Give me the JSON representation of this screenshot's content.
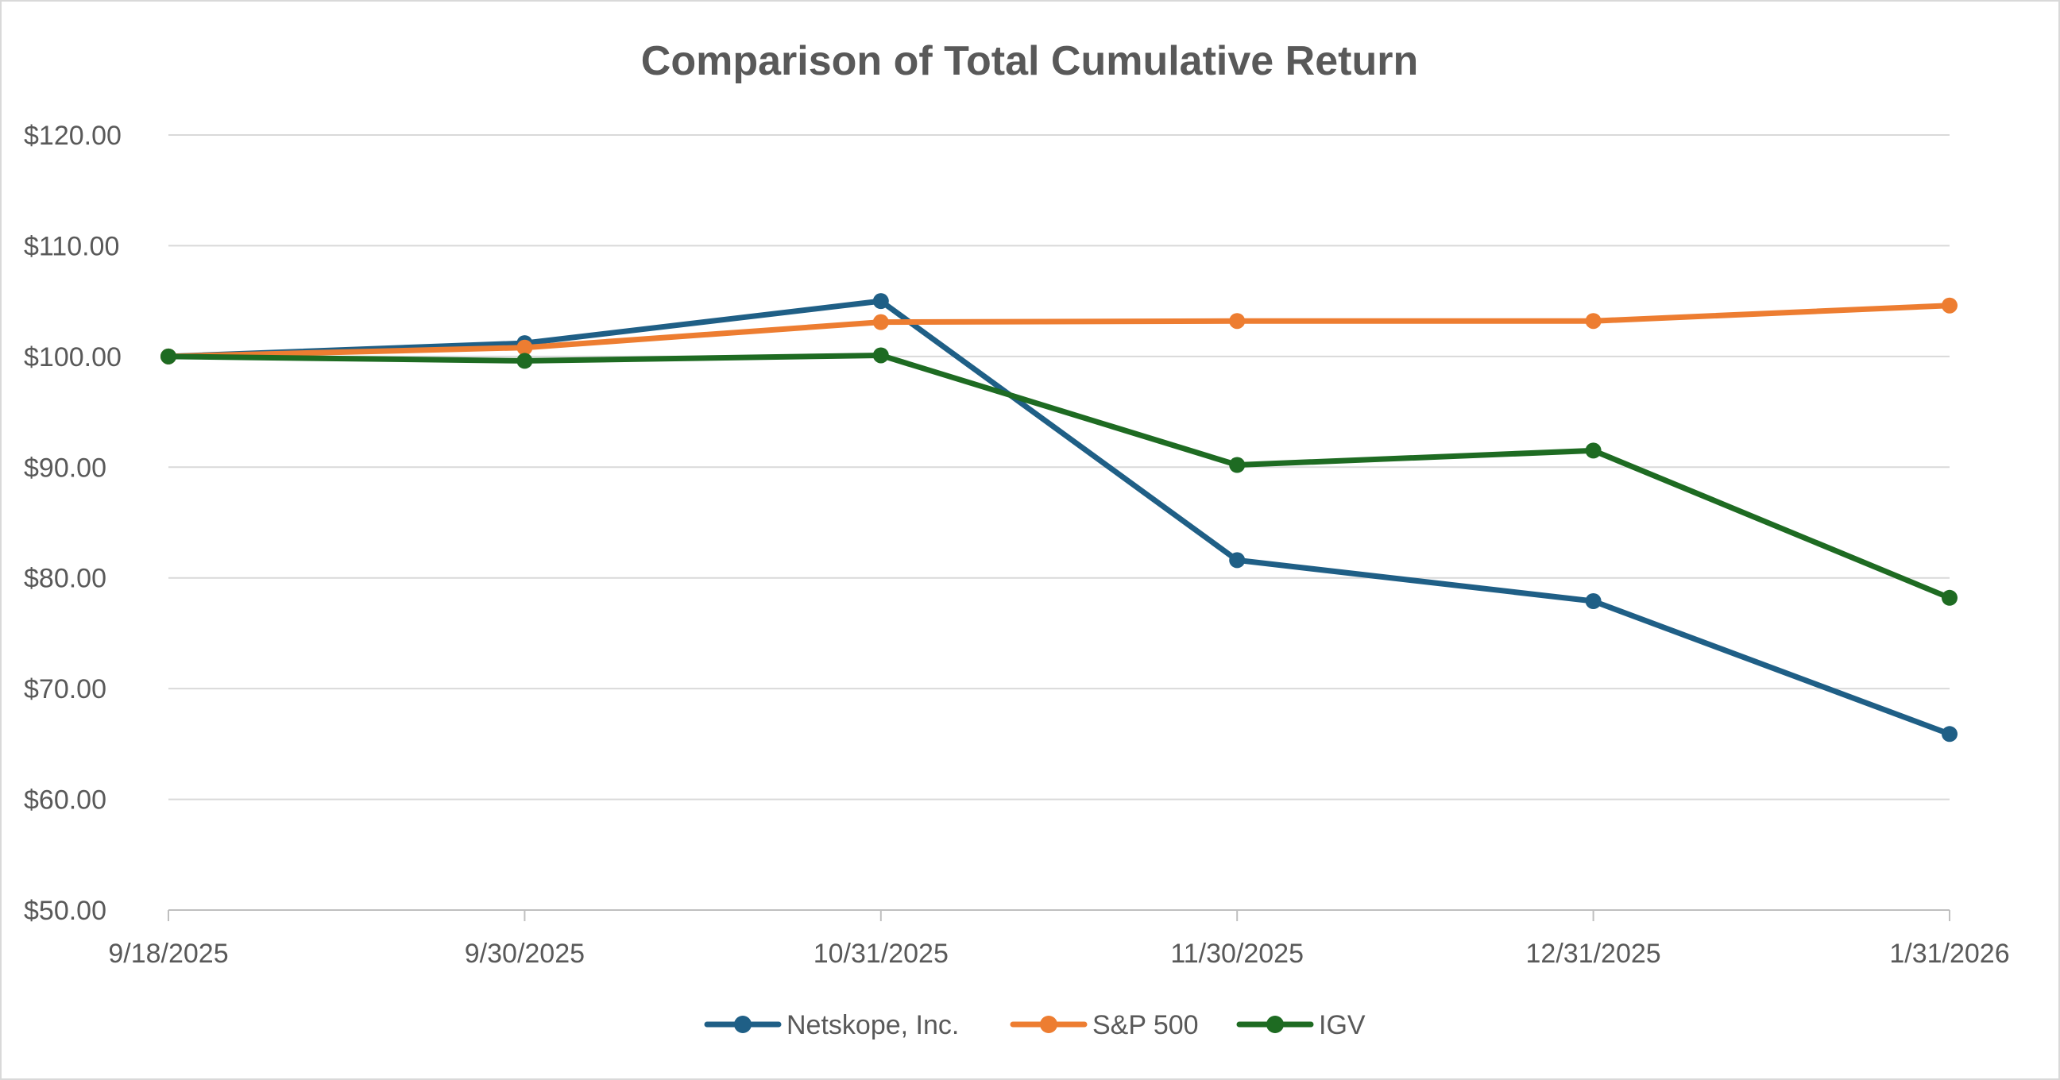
{
  "chart_data": {
    "type": "line",
    "title": "Comparison of Total Cumulative Return",
    "xlabel": "",
    "ylabel": "",
    "categories": [
      "9/18/2025",
      "9/30/2025",
      "10/31/2025",
      "11/30/2025",
      "12/31/2025",
      "1/31/2026"
    ],
    "y_tick_labels": [
      "$50.00",
      "$60.00",
      "$70.00",
      "$80.00",
      "$90.00",
      "$100.00",
      "$110.00",
      "$120.00"
    ],
    "ylim": [
      50,
      120
    ],
    "grid": true,
    "legend_position": "bottom",
    "series": [
      {
        "name": "Netskope, Inc.",
        "color": "#1f5f86",
        "values": [
          100.0,
          101.2,
          105.0,
          81.6,
          77.9,
          65.9
        ]
      },
      {
        "name": "S&P 500",
        "color": "#ed7d31",
        "values": [
          100.0,
          100.8,
          103.1,
          103.2,
          103.2,
          104.6
        ]
      },
      {
        "name": "IGV",
        "color": "#1e6b22",
        "values": [
          100.0,
          99.6,
          100.1,
          90.2,
          91.5,
          78.2
        ]
      }
    ]
  }
}
